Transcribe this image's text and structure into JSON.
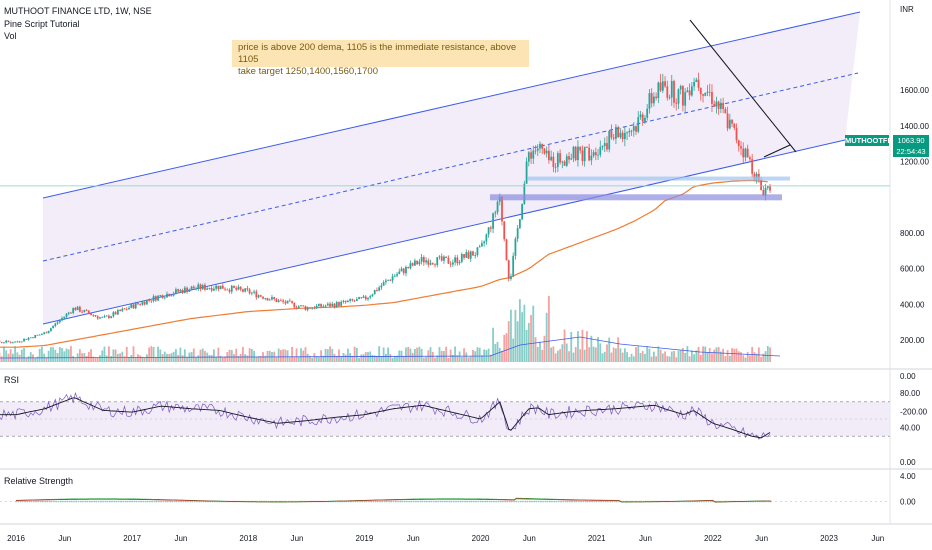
{
  "header": {
    "symbol_line": "MUTHOOT FINANCE LTD, 1W, NSE",
    "indicator": "Pine Script Tutorial",
    "volume_label": "Vol"
  },
  "annotation": {
    "line1": "price is above 200 dema, 1105 is the immediate resistance, above 1105",
    "line2": "take target 1250,1400,1560,1700"
  },
  "price_axis": {
    "currency": "INR",
    "ticks": [
      "1600.00",
      "1400.00",
      "1200.00",
      "800.00",
      "600.00",
      "400.00",
      "200.00",
      "0.00",
      "-200.00"
    ]
  },
  "last_price": {
    "ticker": "MUTHOOTFIN",
    "value": "1063.90",
    "countdown": "22:54:43"
  },
  "rsi": {
    "title": "RSI",
    "ticks": [
      "80.00",
      "40.00",
      "0.00"
    ]
  },
  "relative_strength": {
    "title": "Relative Strength",
    "ticks": [
      "4.00",
      "0.00"
    ]
  },
  "time_axis": {
    "labels": [
      "2016",
      "Jun",
      "2017",
      "Jun",
      "2018",
      "Jun",
      "2019",
      "Jun",
      "2020",
      "Jun",
      "2021",
      "Jun",
      "2022",
      "Jun",
      "2023",
      "Jun"
    ]
  },
  "colors": {
    "channel": "#3d5de8",
    "channel_fill": "#ece6f7",
    "dema": "#ef7d35",
    "up": "#26a69a",
    "down": "#ef5350",
    "rsi_line": "#7e57c2",
    "rsi_band": "#ede7f6",
    "rs_green": "#2e9e3e",
    "rs_red": "#c0392b"
  },
  "chart_data": {
    "type": "line",
    "title": "MUTHOOT FINANCE LTD, 1W, NSE",
    "x": [
      "2016-01",
      "2016-04",
      "2016-07",
      "2016-10",
      "2017-01",
      "2017-04",
      "2017-07",
      "2017-10",
      "2018-01",
      "2018-04",
      "2018-07",
      "2018-10",
      "2019-01",
      "2019-04",
      "2019-07",
      "2019-10",
      "2020-01",
      "2020-03",
      "2020-04",
      "2020-06",
      "2020-07",
      "2020-08",
      "2020-10",
      "2020-12",
      "2021-03",
      "2021-05",
      "2021-07",
      "2021-08",
      "2021-10",
      "2021-11",
      "2022-01",
      "2022-03",
      "2022-05",
      "2022-06",
      "2022-07"
    ],
    "series": [
      {
        "name": "MUTHOOTFIN",
        "values": [
          190,
          240,
          380,
          320,
          390,
          450,
          490,
          500,
          470,
          420,
          380,
          400,
          430,
          560,
          650,
          640,
          700,
          980,
          520,
          1250,
          1280,
          1200,
          1230,
          1250,
          1350,
          1400,
          1580,
          1620,
          1560,
          1680,
          1560,
          1380,
          1180,
          1040,
          1063.9
        ]
      },
      {
        "name": "200 DEMA",
        "values": [
          160,
          170,
          200,
          230,
          260,
          290,
          320,
          340,
          360,
          370,
          380,
          385,
          395,
          410,
          440,
          470,
          500,
          540,
          550,
          600,
          640,
          680,
          720,
          760,
          820,
          870,
          930,
          980,
          1020,
          1060,
          1080,
          1090,
          1095,
          1090,
          1085
        ]
      }
    ],
    "ylim": [
      -250,
      1750
    ],
    "resistance": 1105,
    "targets": [
      1250,
      1400,
      1560,
      1700
    ],
    "rsi": {
      "ylim": [
        0,
        100
      ],
      "bands": [
        30,
        70
      ],
      "values": [
        55,
        62,
        75,
        60,
        58,
        65,
        62,
        60,
        52,
        45,
        48,
        52,
        55,
        62,
        66,
        58,
        50,
        70,
        35,
        62,
        63,
        55,
        58,
        60,
        62,
        64,
        66,
        62,
        55,
        60,
        45,
        38,
        30,
        28,
        35
      ]
    },
    "relative_strength": {
      "ylim": [
        -2,
        4
      ]
    }
  }
}
